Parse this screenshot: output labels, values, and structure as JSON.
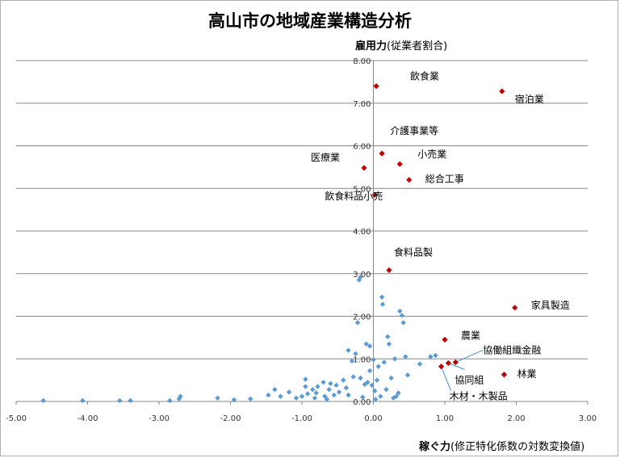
{
  "chart_data": {
    "type": "scatter",
    "title": "高山市の地域産業構造分析",
    "ylabel_main": "雇用力",
    "ylabel_sub": "(従業者割合)",
    "xlabel_main": "稼ぐ力",
    "xlabel_sub": "(修正特化係数の対数変換値)",
    "xlim": [
      -5.0,
      3.0
    ],
    "ylim": [
      0.0,
      8.0
    ],
    "xticks": [
      "-5.00",
      "-4.00",
      "-3.00",
      "-2.00",
      "-1.00",
      "0.00",
      "1.00",
      "2.00",
      "3.00"
    ],
    "yticks": [
      "0.00",
      "1.00",
      "2.00",
      "3.00",
      "4.00",
      "5.00",
      "6.00",
      "7.00",
      "8.00"
    ],
    "grid": "horizontal",
    "colors": {
      "highlight": "#C00000",
      "other": "#5B9BD5",
      "grid": "#888888"
    },
    "highlighted": [
      {
        "label": "飲食業",
        "x": 0.04,
        "y": 7.4
      },
      {
        "label": "宿泊業",
        "x": 1.8,
        "y": 7.28
      },
      {
        "label": "介護事業等",
        "x": 0.12,
        "y": 5.82
      },
      {
        "label": "小売業",
        "x": 0.37,
        "y": 5.57
      },
      {
        "label": "医療業",
        "x": -0.13,
        "y": 5.48
      },
      {
        "label": "総合工事",
        "x": 0.5,
        "y": 5.2
      },
      {
        "label": "飲食料品小売",
        "x": 0.02,
        "y": 4.85
      },
      {
        "label": "食料品製",
        "x": 0.22,
        "y": 3.08
      },
      {
        "label": "家具製造",
        "x": 1.98,
        "y": 2.2
      },
      {
        "label": "農業",
        "x": 1.0,
        "y": 1.45
      },
      {
        "label": "協働組織金融",
        "x": 1.15,
        "y": 0.92
      },
      {
        "label": "協同組",
        "x": 1.05,
        "y": 0.9
      },
      {
        "label": "林業",
        "x": 1.83,
        "y": 0.63
      },
      {
        "label": "木材・木製品",
        "x": 0.95,
        "y": 0.82
      }
    ],
    "others": [
      [
        -4.62,
        0.02
      ],
      [
        -4.07,
        0.02
      ],
      [
        -3.55,
        0.02
      ],
      [
        -3.4,
        0.02
      ],
      [
        -2.85,
        0.02
      ],
      [
        -2.7,
        0.12
      ],
      [
        -2.72,
        0.06
      ],
      [
        -2.18,
        0.08
      ],
      [
        -1.95,
        0.04
      ],
      [
        -1.72,
        0.06
      ],
      [
        -1.47,
        0.15
      ],
      [
        -1.38,
        0.28
      ],
      [
        -1.3,
        0.12
      ],
      [
        -1.18,
        0.22
      ],
      [
        -1.08,
        0.08
      ],
      [
        -1.0,
        0.12
      ],
      [
        -0.95,
        0.35
      ],
      [
        -0.95,
        0.52
      ],
      [
        -0.92,
        0.18
      ],
      [
        -0.85,
        0.28
      ],
      [
        -0.82,
        0.08
      ],
      [
        -0.8,
        0.2
      ],
      [
        -0.78,
        0.35
      ],
      [
        -0.7,
        0.45
      ],
      [
        -0.68,
        0.12
      ],
      [
        -0.65,
        0.05
      ],
      [
        -0.62,
        0.28
      ],
      [
        -0.6,
        0.42
      ],
      [
        -0.55,
        0.15
      ],
      [
        -0.52,
        0.38
      ],
      [
        -0.48,
        0.22
      ],
      [
        -0.42,
        0.5
      ],
      [
        -0.38,
        0.32
      ],
      [
        -0.35,
        0.15
      ],
      [
        -0.35,
        1.2
      ],
      [
        -0.3,
        0.95
      ],
      [
        -0.28,
        0.58
      ],
      [
        -0.25,
        1.12
      ],
      [
        -0.22,
        1.85
      ],
      [
        -0.2,
        2.85
      ],
      [
        -0.18,
        2.92
      ],
      [
        -0.18,
        0.55
      ],
      [
        -0.15,
        0.1
      ],
      [
        -0.12,
        0.4
      ],
      [
        -0.1,
        1.35
      ],
      [
        -0.08,
        0.45
      ],
      [
        -0.05,
        1.3
      ],
      [
        -0.05,
        0.72
      ],
      [
        -0.02,
        0.38
      ],
      [
        0.0,
        0.98
      ],
      [
        0.02,
        0.25
      ],
      [
        0.03,
        0.05
      ],
      [
        0.05,
        0.5
      ],
      [
        0.07,
        0.82
      ],
      [
        0.1,
        0.12
      ],
      [
        0.12,
        2.45
      ],
      [
        0.13,
        2.28
      ],
      [
        0.15,
        0.92
      ],
      [
        0.18,
        0.28
      ],
      [
        0.2,
        1.52
      ],
      [
        0.22,
        1.35
      ],
      [
        0.25,
        0.55
      ],
      [
        0.28,
        0.08
      ],
      [
        0.3,
        1.0
      ],
      [
        0.32,
        0.12
      ],
      [
        0.35,
        0.2
      ],
      [
        0.37,
        2.12
      ],
      [
        0.4,
        2.02
      ],
      [
        0.42,
        1.85
      ],
      [
        0.45,
        1.05
      ],
      [
        0.48,
        0.62
      ],
      [
        0.65,
        0.88
      ],
      [
        0.8,
        1.05
      ],
      [
        0.87,
        1.08
      ]
    ]
  }
}
